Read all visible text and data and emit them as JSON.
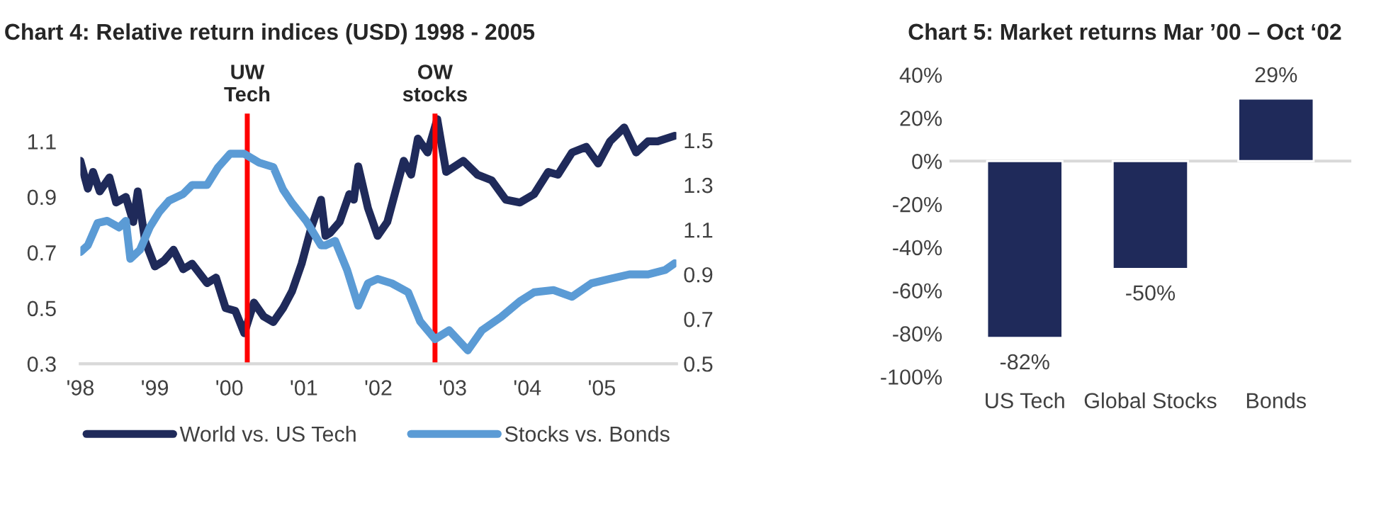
{
  "chart_data": [
    {
      "type": "line",
      "title": "Chart 4: Relative return indices (USD) 1998 - 2005",
      "xlim": [
        1998,
        2006
      ],
      "xticks": [
        {
          "value": 1998,
          "label": "'98"
        },
        {
          "value": 1999,
          "label": "'99"
        },
        {
          "value": 2000,
          "label": "'00"
        },
        {
          "value": 2001,
          "label": "'01"
        },
        {
          "value": 2002,
          "label": "'02"
        },
        {
          "value": 2003,
          "label": "'03"
        },
        {
          "value": 2004,
          "label": "'04"
        },
        {
          "value": 2005,
          "label": "'05"
        }
      ],
      "ylim": [
        0.3,
        1.2
      ],
      "yticks": [
        0.3,
        0.5,
        0.7,
        0.9,
        1.1
      ],
      "y2lim": [
        0.5,
        1.62
      ],
      "y2ticks": [
        0.5,
        0.7,
        0.9,
        1.1,
        1.3,
        1.5
      ],
      "legend": "bottom",
      "grid": false,
      "line_style": "solid",
      "ref_lines": [
        {
          "axis": "x",
          "value": 2000.24,
          "label": "UW\nTech",
          "color": "#ff0000"
        },
        {
          "axis": "x",
          "value": 2002.76,
          "label": "OW\nstocks",
          "color": "#ff0000"
        }
      ],
      "series": [
        {
          "name": "World vs. US Tech",
          "color": "#1f2a5a",
          "x": [
            1998.0,
            1998.1,
            1998.17,
            1998.26,
            1998.39,
            1998.48,
            1998.61,
            1998.71,
            1998.77,
            1998.87,
            1999.0,
            1999.12,
            1999.25,
            1999.38,
            1999.5,
            1999.7,
            1999.82,
            1999.95,
            2000.08,
            2000.2,
            2000.33,
            2000.46,
            2000.59,
            2000.72,
            2000.84,
            2000.97,
            2001.1,
            2001.23,
            2001.29,
            2001.35,
            2001.48,
            2001.61,
            2001.67,
            2001.73,
            2001.86,
            2001.99,
            2002.12,
            2002.34,
            2002.44,
            2002.53,
            2002.66,
            2002.79,
            2002.91,
            2003.14,
            2003.33,
            2003.52,
            2003.71,
            2003.9,
            2004.09,
            2004.28,
            2004.41,
            2004.6,
            2004.79,
            2004.95,
            2005.11,
            2005.3,
            2005.46,
            2005.62,
            2005.75,
            2005.98
          ],
          "values": [
            1.03,
            0.93,
            0.99,
            0.92,
            0.97,
            0.88,
            0.9,
            0.81,
            0.92,
            0.74,
            0.65,
            0.67,
            0.71,
            0.64,
            0.66,
            0.59,
            0.61,
            0.5,
            0.49,
            0.41,
            0.52,
            0.47,
            0.45,
            0.5,
            0.56,
            0.66,
            0.79,
            0.89,
            0.76,
            0.77,
            0.81,
            0.91,
            0.89,
            1.01,
            0.86,
            0.76,
            0.81,
            1.03,
            0.98,
            1.11,
            1.06,
            1.18,
            0.99,
            1.03,
            0.98,
            0.96,
            0.89,
            0.88,
            0.91,
            0.99,
            0.98,
            1.06,
            1.08,
            1.02,
            1.1,
            1.15,
            1.06,
            1.1,
            1.1,
            1.12
          ]
        },
        {
          "name": "Stocks vs. Bonds",
          "color": "#5b9bd5",
          "axis": "y2",
          "x": [
            1998.0,
            1998.1,
            1998.23,
            1998.36,
            1998.52,
            1998.61,
            1998.67,
            1998.8,
            1998.93,
            1999.06,
            1999.19,
            1999.38,
            1999.5,
            1999.7,
            1999.85,
            2000.01,
            2000.2,
            2000.4,
            2000.59,
            2000.72,
            2000.84,
            2001.03,
            2001.23,
            2001.29,
            2001.42,
            2001.58,
            2001.73,
            2001.86,
            2001.99,
            2002.18,
            2002.4,
            2002.56,
            2002.76,
            2002.95,
            2003.2,
            2003.39,
            2003.65,
            2003.9,
            2004.09,
            2004.35,
            2004.6,
            2004.86,
            2005.11,
            2005.37,
            2005.62,
            2005.85,
            2005.98
          ],
          "values": [
            1.0,
            1.03,
            1.13,
            1.14,
            1.11,
            1.14,
            0.97,
            1.01,
            1.11,
            1.18,
            1.23,
            1.26,
            1.3,
            1.3,
            1.38,
            1.44,
            1.44,
            1.4,
            1.38,
            1.28,
            1.22,
            1.14,
            1.03,
            1.03,
            1.05,
            0.92,
            0.76,
            0.86,
            0.88,
            0.86,
            0.82,
            0.69,
            0.61,
            0.65,
            0.56,
            0.65,
            0.71,
            0.78,
            0.82,
            0.83,
            0.8,
            0.86,
            0.88,
            0.9,
            0.9,
            0.92,
            0.95
          ]
        }
      ]
    },
    {
      "type": "bar",
      "title": "Chart 5: Market returns Mar ’00 – Oct ‘02",
      "categories": [
        "US Tech",
        "Global Stocks",
        "Bonds"
      ],
      "values": [
        -82,
        -50,
        29
      ],
      "color": "#1f2a5a",
      "ref_lines": [
        {
          "axis": "y",
          "value": 0,
          "color": "#d9d9d9"
        }
      ],
      "value_labels": [
        "-82%",
        "-50%",
        "29%"
      ],
      "ylim": [
        -100,
        40
      ],
      "yticks": [
        {
          "value": -100,
          "label": "-100%"
        },
        {
          "value": -80,
          "label": "-80%"
        },
        {
          "value": -60,
          "label": "-60%"
        },
        {
          "value": -40,
          "label": "-40%"
        },
        {
          "value": -20,
          "label": "-20%"
        },
        {
          "value": 0,
          "label": "0%"
        },
        {
          "value": 20,
          "label": "20%"
        },
        {
          "value": 40,
          "label": "40%"
        }
      ],
      "grid": false
    }
  ]
}
